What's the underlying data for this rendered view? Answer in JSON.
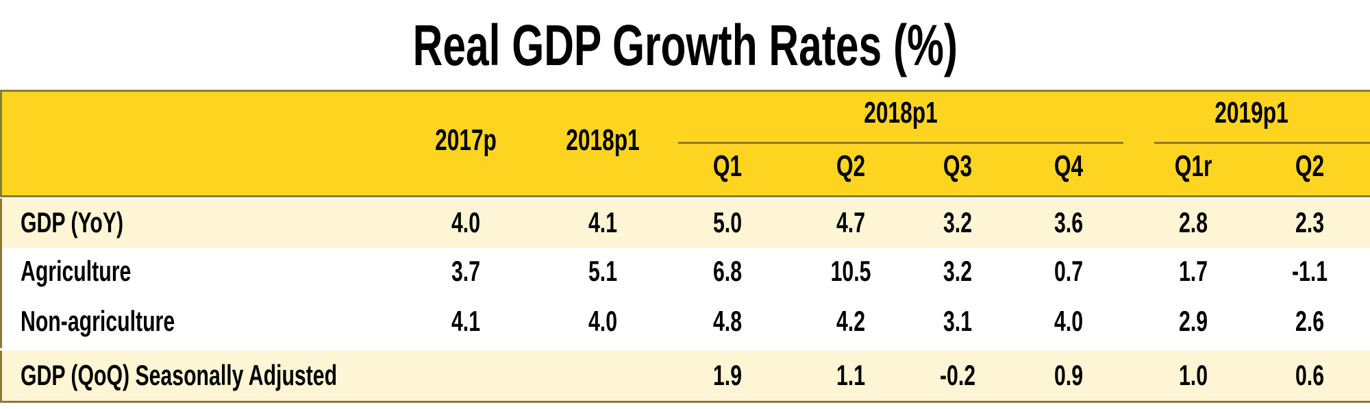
{
  "title": "Real GDP Growth Rates (%)",
  "colors": {
    "header": "#FDD521",
    "highlight_row": "#FEF5D5",
    "plain_row": "#FFFFFF",
    "rule": "#8A7A3A"
  },
  "chart_data": {
    "type": "table",
    "title": "Real GDP Growth Rates (%)",
    "column_groups": [
      {
        "label": "2018p1",
        "columns": [
          "Q1",
          "Q2",
          "Q3",
          "Q4"
        ]
      },
      {
        "label": "2019p1",
        "columns": [
          "Q1r",
          "Q2"
        ]
      }
    ],
    "columns": [
      "2017p",
      "2018p1",
      "Q1",
      "Q2",
      "Q3",
      "Q4",
      "Q1r",
      "Q2"
    ],
    "rows": [
      {
        "label": "GDP (YoY)",
        "values": [
          "4.0",
          "4.1",
          "5.0",
          "4.7",
          "3.2",
          "3.6",
          "2.8",
          "2.3"
        ]
      },
      {
        "label": "Agriculture",
        "values": [
          "3.7",
          "5.1",
          "6.8",
          "10.5",
          "3.2",
          "0.7",
          "1.7",
          "-1.1"
        ]
      },
      {
        "label": "Non-agriculture",
        "values": [
          "4.1",
          "4.0",
          "4.8",
          "4.2",
          "3.1",
          "4.0",
          "2.9",
          "2.6"
        ]
      },
      {
        "label": "GDP  (QoQ) Seasonally Adjusted",
        "values": [
          "",
          "",
          "1.9",
          "1.1",
          "-0.2",
          "0.9",
          "1.0",
          "0.6"
        ]
      }
    ]
  }
}
